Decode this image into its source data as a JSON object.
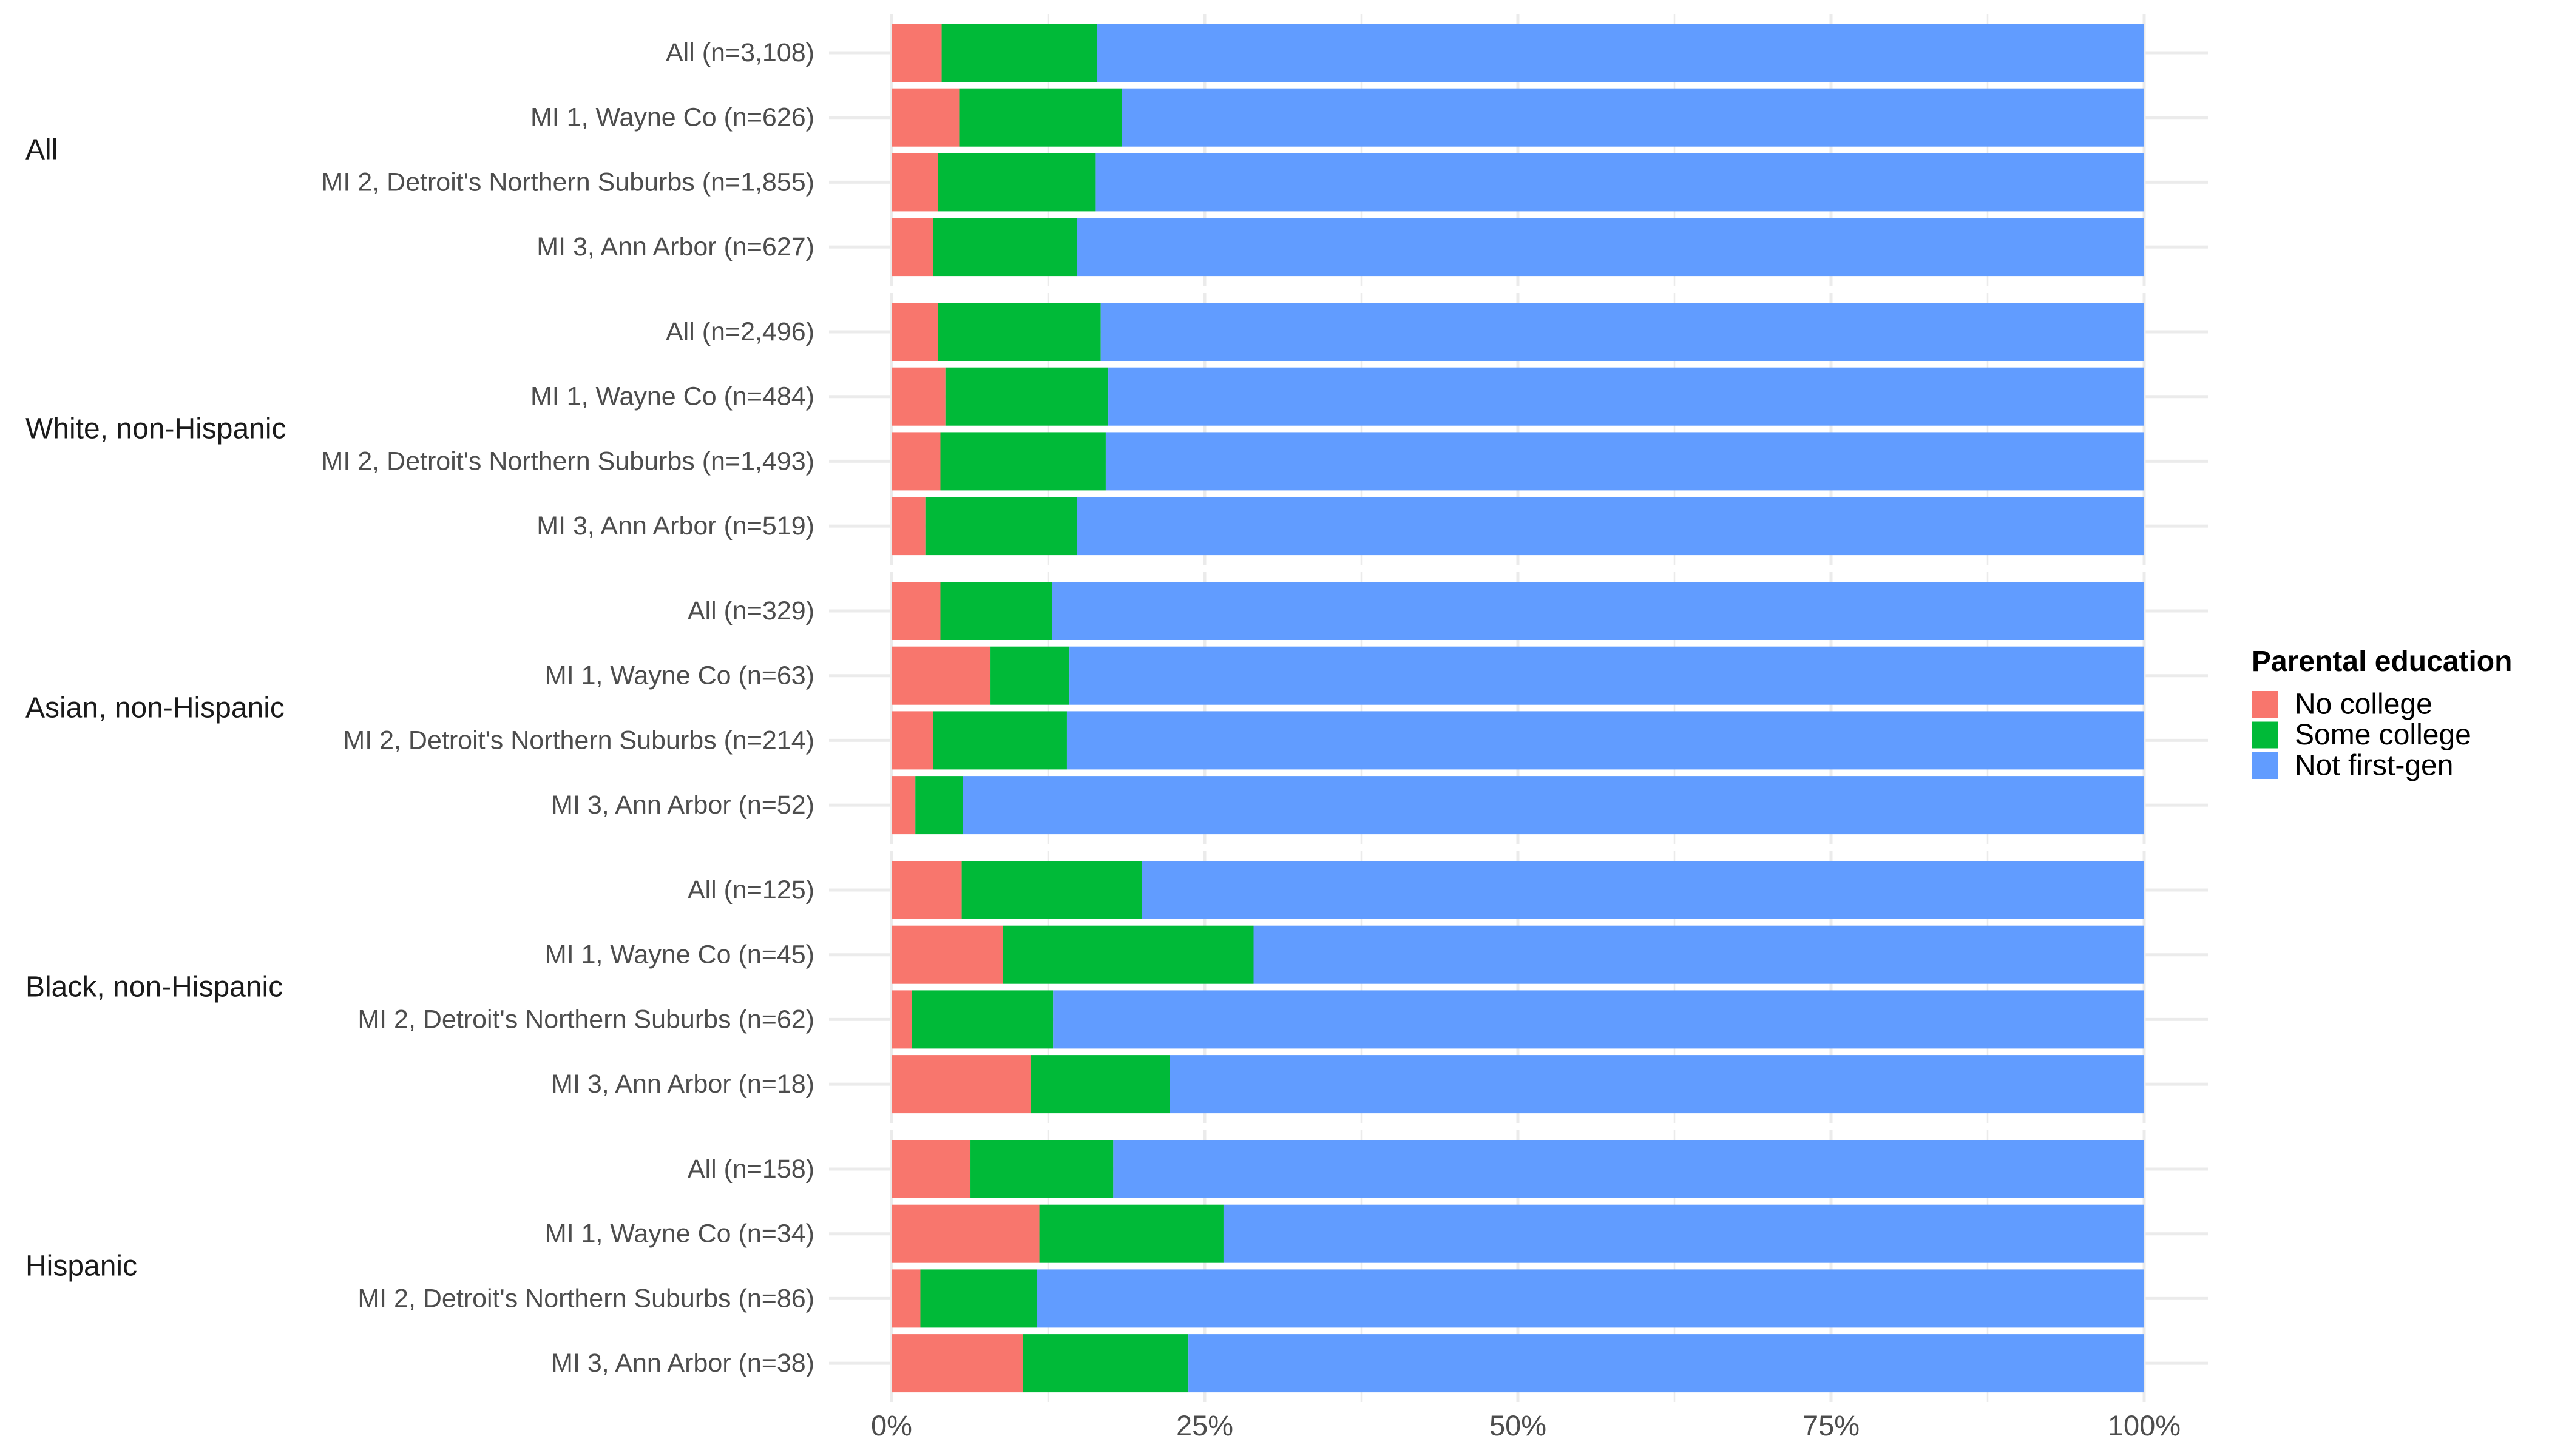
{
  "chart_data": {
    "type": "bar",
    "orientation": "horizontal",
    "stacked": true,
    "normalized": true,
    "title": "",
    "xlabel": "",
    "ylabel": "",
    "xlim": [
      0,
      100
    ],
    "x_ticks": [
      "0%",
      "25%",
      "50%",
      "75%",
      "100%"
    ],
    "x_tick_values": [
      0,
      25,
      50,
      75,
      100
    ],
    "grid": true,
    "value_unit": "percent",
    "legend": {
      "title": "Parental education",
      "position": "right",
      "entries": [
        {
          "name": "No college",
          "color": "#F8766D"
        },
        {
          "name": "Some college",
          "color": "#00BA38"
        },
        {
          "name": "Not first-gen",
          "color": "#619CFF"
        }
      ]
    },
    "series_order": [
      "No college",
      "Some college",
      "Not first-gen"
    ],
    "groups": [
      {
        "label": "All",
        "rows": [
          {
            "label": "All (n=3,108)",
            "values": [
              4.0,
              12.4,
              83.6
            ]
          },
          {
            "label": "MI 1, Wayne Co (n=626)",
            "values": [
              5.4,
              13.0,
              81.6
            ]
          },
          {
            "label": "MI 2, Detroit's Northern Suburbs (n=1,855)",
            "values": [
              3.7,
              12.6,
              83.7
            ]
          },
          {
            "label": "MI 3, Ann Arbor (n=627)",
            "values": [
              3.3,
              11.5,
              85.2
            ]
          }
        ]
      },
      {
        "label": "White, non-Hispanic",
        "rows": [
          {
            "label": "All (n=2,496)",
            "values": [
              3.7,
              13.0,
              83.3
            ]
          },
          {
            "label": "MI 1, Wayne Co (n=484)",
            "values": [
              4.3,
              13.0,
              82.7
            ]
          },
          {
            "label": "MI 2, Detroit's Northern Suburbs (n=1,493)",
            "values": [
              3.9,
              13.2,
              82.9
            ]
          },
          {
            "label": "MI 3, Ann Arbor (n=519)",
            "values": [
              2.7,
              12.1,
              85.2
            ]
          }
        ]
      },
      {
        "label": "Asian, non-Hispanic",
        "rows": [
          {
            "label": "All (n=329)",
            "values": [
              3.9,
              8.9,
              87.2
            ]
          },
          {
            "label": "MI 1, Wayne Co (n=63)",
            "values": [
              7.9,
              6.3,
              85.8
            ]
          },
          {
            "label": "MI 2, Detroit's Northern Suburbs (n=214)",
            "values": [
              3.3,
              10.7,
              86.0
            ]
          },
          {
            "label": "MI 3, Ann Arbor (n=52)",
            "values": [
              1.9,
              3.8,
              94.3
            ]
          }
        ]
      },
      {
        "label": "Black, non-Hispanic",
        "rows": [
          {
            "label": "All (n=125)",
            "values": [
              5.6,
              14.4,
              80.0
            ]
          },
          {
            "label": "MI 1, Wayne Co (n=45)",
            "values": [
              8.9,
              20.0,
              71.1
            ]
          },
          {
            "label": "MI 2, Detroit's Northern Suburbs (n=62)",
            "values": [
              1.6,
              11.3,
              87.1
            ]
          },
          {
            "label": "MI 3, Ann Arbor (n=18)",
            "values": [
              11.1,
              11.1,
              77.8
            ]
          }
        ]
      },
      {
        "label": "Hispanic",
        "rows": [
          {
            "label": "All (n=158)",
            "values": [
              6.3,
              11.4,
              82.3
            ]
          },
          {
            "label": "MI 1, Wayne Co (n=34)",
            "values": [
              11.8,
              14.7,
              73.5
            ]
          },
          {
            "label": "MI 2, Detroit's Northern Suburbs (n=86)",
            "values": [
              2.3,
              9.3,
              88.4
            ]
          },
          {
            "label": "MI 3, Ann Arbor (n=38)",
            "values": [
              10.5,
              13.2,
              76.3
            ]
          }
        ]
      }
    ]
  }
}
